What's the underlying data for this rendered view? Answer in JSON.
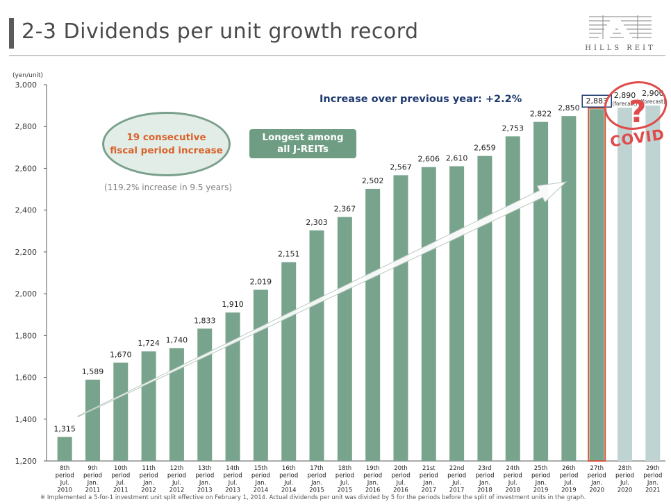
{
  "page": {
    "title": "2-3 Dividends per unit growth record",
    "logo_text": "HILLS REIT",
    "footnote": "※ Implemented a 5-for-1 investment unit split effective on February 1,  2014.  Actual dividends per unit was divided by 5 for the periods before the split of investment units in the graph."
  },
  "annotations": {
    "ellipse_text": "19 consecutive\nfiscal period increase",
    "ellipse_note": "(119.2% increase in 9.5 years)",
    "green_box": "Longest among\nall J-REITs",
    "increase": "Increase over previous year: +2.2%",
    "covid": "COVID",
    "question": "?"
  },
  "colors": {
    "bar": "#78a38c",
    "forecast_bar": "#bfd3d3",
    "highlight_outline": "#d0593a",
    "accent_navy": "#1f3a6e"
  },
  "chart_data": {
    "type": "bar",
    "ylabel": "(yen/unit)",
    "ylim": [
      1200,
      3000
    ],
    "yticks": [
      "1,200",
      "1,400",
      "1,600",
      "1,800",
      "2,000",
      "2,200",
      "2,400",
      "2,600",
      "2,800",
      "3,000"
    ],
    "ytick_values": [
      1200,
      1400,
      1600,
      1800,
      2000,
      2200,
      2400,
      2600,
      2800,
      3000
    ],
    "categories": [
      [
        "8th",
        "period",
        "Jul.",
        "2010"
      ],
      [
        "9th",
        "period",
        "Jan.",
        "2011"
      ],
      [
        "10th",
        "period",
        "Jul.",
        "2011"
      ],
      [
        "11th",
        "period",
        "Jan.",
        "2012"
      ],
      [
        "12th",
        "period",
        "Jul.",
        "2012"
      ],
      [
        "13th",
        "period",
        "Jan.",
        "2013"
      ],
      [
        "14th",
        "period",
        "Jul.",
        "2013"
      ],
      [
        "15th",
        "period",
        "Jan.",
        "2014"
      ],
      [
        "16th",
        "period",
        "Jul.",
        "2014"
      ],
      [
        "17th",
        "period",
        "Jan.",
        "2015"
      ],
      [
        "18th",
        "period",
        "Jul.",
        "2015"
      ],
      [
        "19th",
        "period",
        "Jan.",
        "2016"
      ],
      [
        "20th",
        "period",
        "Jul.",
        "2016"
      ],
      [
        "21st",
        "period",
        "Jan.",
        "2017"
      ],
      [
        "22nd",
        "period",
        "Jul.",
        "2017"
      ],
      [
        "23rd",
        "period",
        "Jan.",
        "2018"
      ],
      [
        "24th",
        "period",
        "Jul.",
        "2018"
      ],
      [
        "25th",
        "period",
        "Jan.",
        "2019"
      ],
      [
        "26th",
        "period",
        "Jul.",
        "2019"
      ],
      [
        "27th",
        "period",
        "Jan.",
        "2020"
      ],
      [
        "28th",
        "period",
        "Jul.",
        "2020"
      ],
      [
        "29th",
        "period",
        "Jan.",
        "2021"
      ]
    ],
    "values": [
      1315,
      1589,
      1670,
      1724,
      1740,
      1833,
      1910,
      2019,
      2151,
      2303,
      2367,
      2502,
      2567,
      2606,
      2610,
      2659,
      2753,
      2822,
      2850,
      2883,
      2890,
      2900
    ],
    "value_labels": [
      "1,315",
      "1,589",
      "1,670",
      "1,724",
      "1,740",
      "1,833",
      "1,910",
      "2,019",
      "2,151",
      "2,303",
      "2,367",
      "2,502",
      "2,567",
      "2,606",
      "2,610",
      "2,659",
      "2,753",
      "2,822",
      "2,850",
      "2,883",
      "2,890",
      "2,900"
    ],
    "forecast_label": "(forecast)",
    "forecast_indices": [
      20,
      21
    ],
    "highlight_index": 19,
    "grid": false,
    "legend": "none"
  }
}
